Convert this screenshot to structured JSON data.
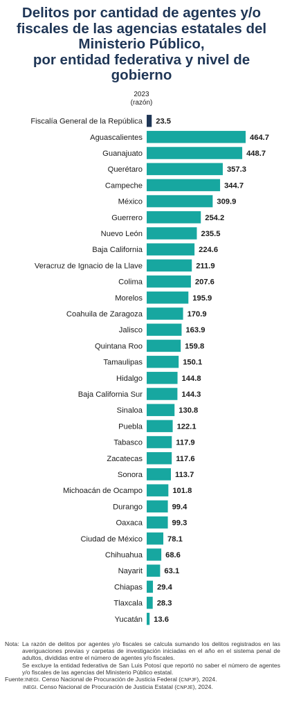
{
  "chart_data": {
    "type": "bar",
    "orientation": "horizontal",
    "title_lines": [
      "Delitos por cantidad de agentes y/o",
      "fiscales de las agencias estatales del",
      "Ministerio Público,",
      "por entidad federativa y nivel de",
      "gobierno"
    ],
    "year": "2023",
    "unit": "(razón)",
    "categories": [
      "Fiscalía General de la República",
      "Aguascalientes",
      "Guanajuato",
      "Querétaro",
      "Campeche",
      "México",
      "Guerrero",
      "Nuevo León",
      "Baja California",
      "Veracruz de Ignacio de la Llave",
      "Colima",
      "Morelos",
      "Coahuila de Zaragoza",
      "Jalisco",
      "Quintana Roo",
      "Tamaulipas",
      "Hidalgo",
      "Baja California Sur",
      "Sinaloa",
      "Puebla",
      "Tabasco",
      "Zacatecas",
      "Sonora",
      "Michoacán de Ocampo",
      "Durango",
      "Oaxaca",
      "Ciudad de México",
      "Chihuahua",
      "Nayarit",
      "Chiapas",
      "Tlaxcala",
      "Yucatán"
    ],
    "values": [
      23.5,
      464.7,
      448.7,
      357.3,
      344.7,
      309.9,
      254.2,
      235.5,
      224.6,
      211.9,
      207.6,
      195.9,
      170.9,
      163.9,
      159.8,
      150.1,
      144.8,
      144.3,
      130.8,
      122.1,
      117.9,
      117.6,
      113.7,
      101.8,
      99.4,
      99.3,
      78.1,
      68.6,
      63.1,
      29.4,
      28.3,
      13.6
    ],
    "value_labels": [
      "23.5",
      "464.7",
      "448.7",
      "357.3",
      "344.7",
      "309.9",
      "254.2",
      "235.5",
      "224.6",
      "211.9",
      "207.6",
      "195.9",
      "170.9",
      "163.9",
      "159.8",
      "150.1",
      "144.8",
      "144.3",
      "130.8",
      "122.1",
      "117.9",
      "117.6",
      "113.7",
      "101.8",
      "99.4",
      "99.3",
      "78.1",
      "68.6",
      "63.1",
      "29.4",
      "28.3",
      "13.6"
    ],
    "xlim": [
      0,
      464.7
    ],
    "grid": false,
    "legend": "none",
    "colors": {
      "federal": "#1f3656",
      "state": "#17a7a0"
    }
  },
  "notes": {
    "nota_label": "Nota:",
    "nota_text": "La razón de delitos por agentes y/o fiscales se calcula sumando los delitos registrados en las averiguaciones previas y carpetas de investigación iniciadas en el año en el sistema penal de adultos, divididas entre el número de agentes y/o fiscales.",
    "nota_text2": "Se excluye la entidad federativa de San Luis Potosí que reportó no saber el número de agentes y/o fiscales de las agencias del Ministerio Público estatal.",
    "fuente_label": "Fuente:",
    "fuente_inegi": "INEGI",
    "fuente_text1a": ". Censo Nacional de Procuración de Justicia Federal (",
    "fuente_cnpjf": "CNPJF",
    "fuente_text1b": "), 2024.",
    "fuente_inegi2": "INEGI",
    "fuente_text2a": ". Censo Nacional de Procuración de Justicia Estatal (",
    "fuente_cnpje": "CNPJE",
    "fuente_text2b": "), 2024."
  }
}
